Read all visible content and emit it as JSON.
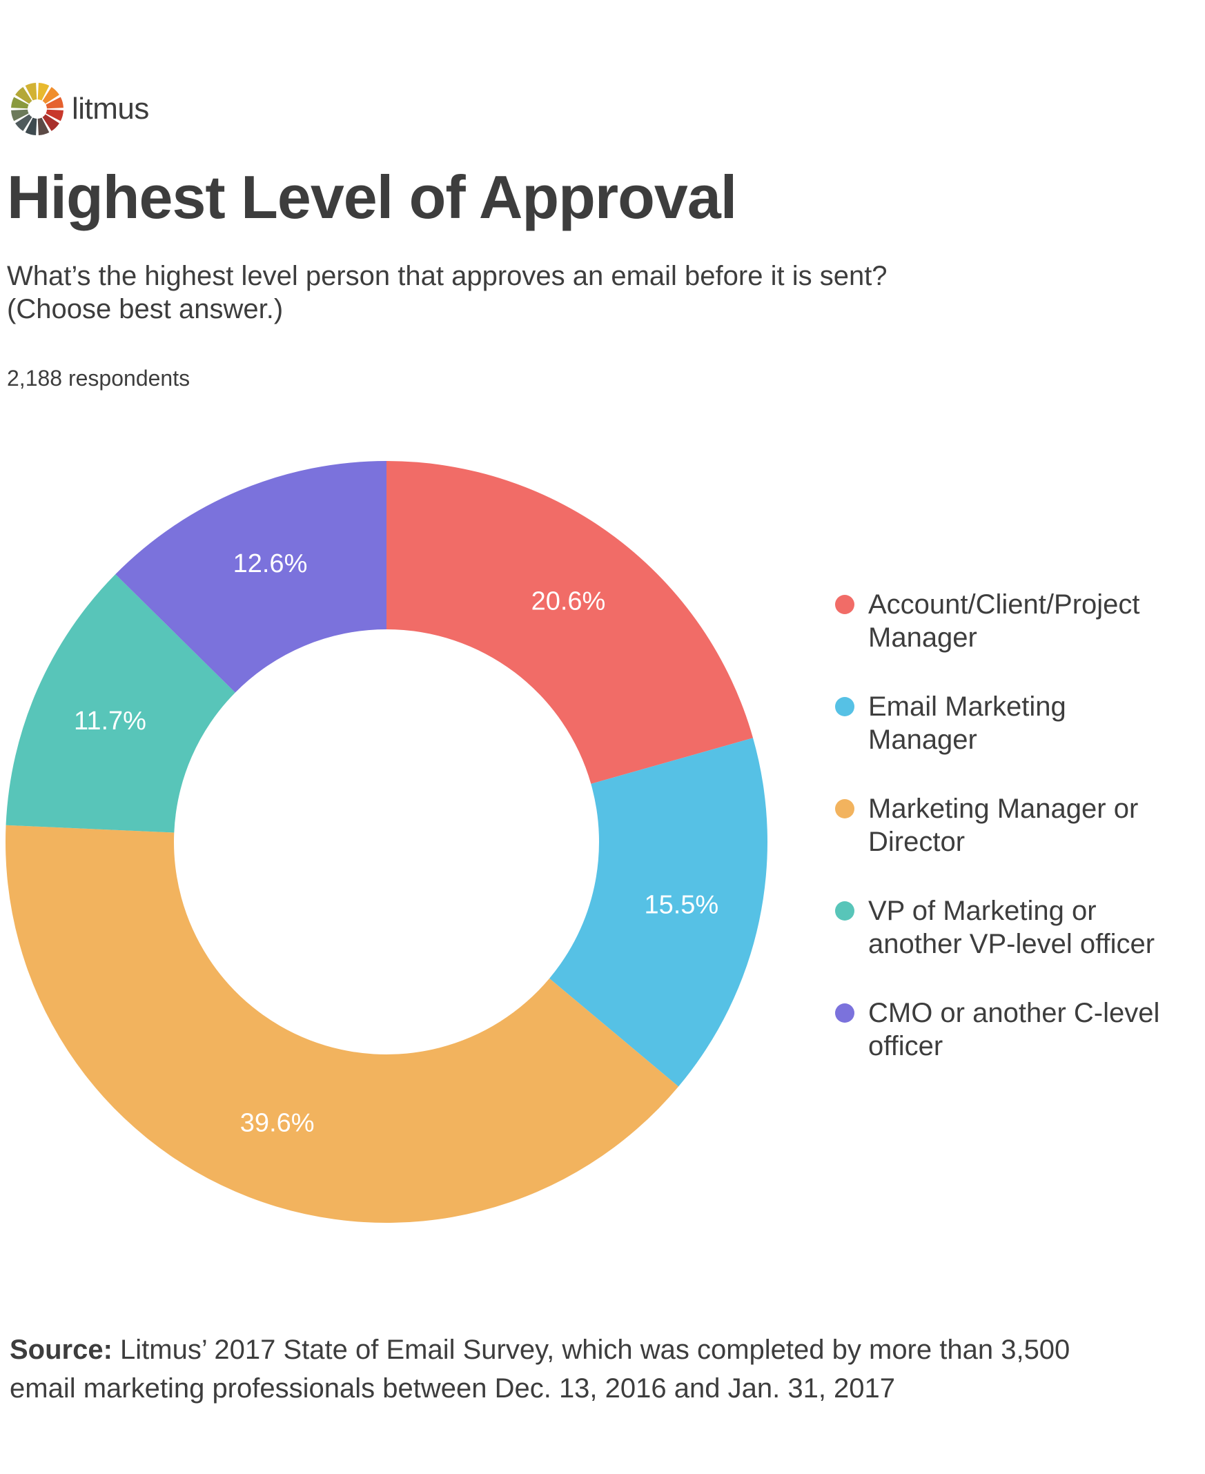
{
  "brand": {
    "name": "litmus",
    "logo_colors": [
      "#e8b92e",
      "#f08e2c",
      "#e5612e",
      "#c8382c",
      "#a8302c",
      "#5c4a46",
      "#3e4a4f",
      "#4f5a5c",
      "#6c7a5a",
      "#8a9a3e",
      "#b4a838",
      "#d2b234"
    ]
  },
  "title": "Highest Level of Approval",
  "subtitle": {
    "line1": "What’s the highest level person that approves an email before it is sent?",
    "line2": "(Choose best answer.)"
  },
  "respondents": "2,188 respondents",
  "chart_data": {
    "type": "pie",
    "donut": true,
    "title": "Highest Level of Approval",
    "unit": "%",
    "legend_position": "right",
    "slices": [
      {
        "name": "Account/Client/Project Manager",
        "value": 20.6,
        "label": "20.6%",
        "color": "#f16c67"
      },
      {
        "name": "Email Marketing Manager",
        "value": 15.5,
        "label": "15.5%",
        "color": "#56c1e5"
      },
      {
        "name": "Marketing Manager or Director",
        "value": 39.6,
        "label": "39.6%",
        "color": "#f2b35e"
      },
      {
        "name": "VP of Marketing or another VP-level officer",
        "value": 11.7,
        "label": "11.7%",
        "color": "#58c5b9"
      },
      {
        "name": "CMO or another C-level officer",
        "value": 12.6,
        "label": "12.6%",
        "color": "#7b72dc"
      }
    ]
  },
  "legend": [
    {
      "line1": "Account/Client/Project",
      "line2": "Manager",
      "color": "#f16c67"
    },
    {
      "line1": "Email Marketing",
      "line2": "Manager",
      "color": "#56c1e5"
    },
    {
      "line1": "Marketing Manager or",
      "line2": "Director",
      "color": "#f2b35e"
    },
    {
      "line1": "VP of Marketing or",
      "line2": "another VP-level officer",
      "color": "#58c5b9"
    },
    {
      "line1": "CMO or another C-level",
      "line2": "officer",
      "color": "#7b72dc"
    }
  ],
  "source": {
    "label": "Source:",
    "text": " Litmus’ 2017 State of Email Survey, which was completed by more than 3,500",
    "text2": "email marketing professionals between Dec. 13, 2016 and Jan. 31, 2017"
  }
}
